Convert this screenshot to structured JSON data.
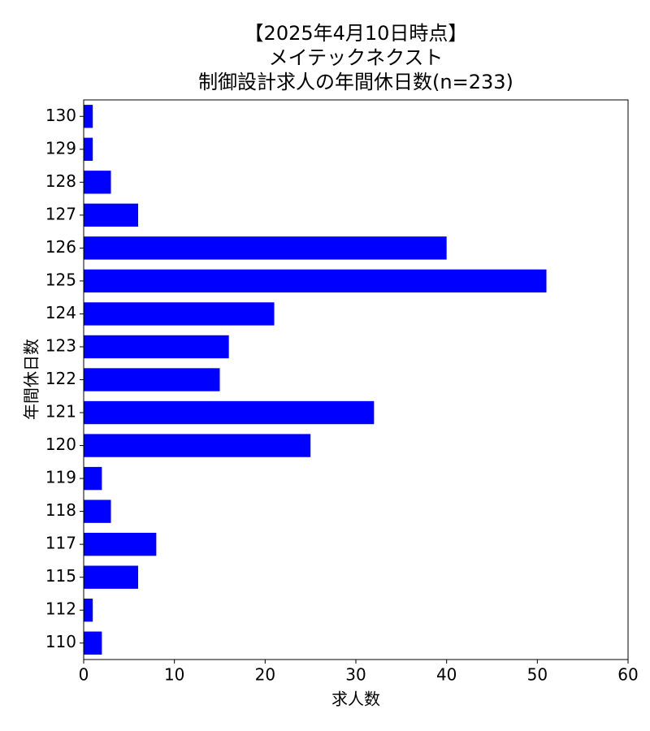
{
  "chart_data": {
    "type": "barh",
    "title": [
      "【2025年4月10日時点】",
      "メイテックネクスト",
      "制御設計求人の年間休日数(n=233)"
    ],
    "xlabel": "求人数",
    "ylabel": "年間休日数",
    "categories": [
      "110",
      "112",
      "115",
      "117",
      "118",
      "119",
      "120",
      "121",
      "122",
      "123",
      "124",
      "125",
      "126",
      "127",
      "128",
      "129",
      "130"
    ],
    "values": [
      2,
      1,
      6,
      8,
      3,
      2,
      25,
      32,
      15,
      16,
      21,
      51,
      40,
      6,
      3,
      1,
      1
    ],
    "color": "#0000ff",
    "xlim": [
      0,
      60
    ],
    "xticks": [
      0,
      10,
      20,
      30,
      40,
      50,
      60
    ],
    "grid": false
  }
}
